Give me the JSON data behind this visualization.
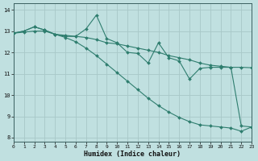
{
  "xlabel": "Humidex (Indice chaleur)",
  "line_color": "#2e7d6e",
  "bg_color": "#c0e0e0",
  "grid_color": "#a8c8c8",
  "xlim": [
    0,
    23
  ],
  "ylim": [
    7.8,
    14.3
  ],
  "xticks": [
    0,
    1,
    2,
    3,
    4,
    5,
    6,
    7,
    8,
    9,
    10,
    11,
    12,
    13,
    14,
    15,
    16,
    17,
    18,
    19,
    20,
    21,
    22,
    23
  ],
  "yticks": [
    8,
    9,
    10,
    11,
    12,
    13,
    14
  ],
  "line1_x": [
    0,
    1,
    2,
    3,
    4,
    5,
    6,
    7,
    8,
    9,
    10,
    11,
    12,
    13,
    14,
    15,
    16,
    17,
    18,
    19,
    20,
    21,
    22,
    23
  ],
  "line1_y": [
    12.9,
    13.0,
    13.2,
    13.05,
    12.85,
    12.75,
    12.75,
    13.1,
    13.75,
    12.65,
    12.45,
    12.0,
    11.95,
    11.5,
    12.45,
    11.75,
    11.6,
    10.75,
    11.25,
    11.3,
    11.3,
    11.3,
    8.55,
    8.5
  ],
  "line2_x": [
    0,
    1,
    2,
    3,
    4,
    5,
    6,
    7,
    8,
    9,
    10,
    11,
    12,
    13,
    14,
    15,
    16,
    17,
    18,
    19,
    20,
    21,
    22,
    23
  ],
  "line2_y": [
    12.9,
    13.0,
    13.2,
    13.05,
    12.85,
    12.8,
    12.75,
    12.7,
    12.6,
    12.45,
    12.4,
    12.3,
    12.2,
    12.1,
    12.0,
    11.85,
    11.75,
    11.65,
    11.5,
    11.4,
    11.35,
    11.3,
    11.3,
    11.28
  ],
  "line3_x": [
    0,
    1,
    2,
    3,
    4,
    5,
    6,
    7,
    8,
    9,
    10,
    11,
    12,
    13,
    14,
    15,
    16,
    17,
    18,
    19,
    20,
    21,
    22,
    23
  ],
  "line3_y": [
    12.9,
    12.95,
    13.0,
    13.0,
    12.85,
    12.7,
    12.5,
    12.2,
    11.85,
    11.45,
    11.05,
    10.65,
    10.25,
    9.85,
    9.5,
    9.2,
    8.95,
    8.75,
    8.6,
    8.55,
    8.5,
    8.45,
    8.3,
    8.5
  ]
}
